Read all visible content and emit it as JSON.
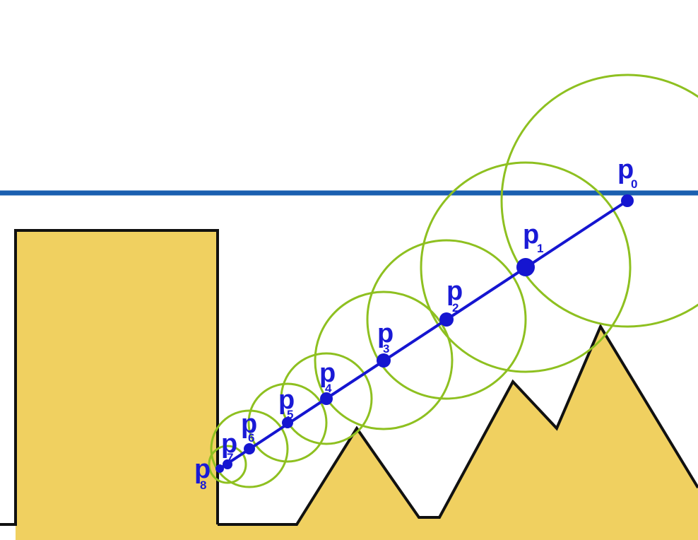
{
  "colors": {
    "background": "#ffffff",
    "terrain_fill": "#f0d060",
    "terrain_outline": "#111111",
    "horizon_line": "#1a5fb0",
    "ray": "#1515d0",
    "point": "#1515d0",
    "circle": "#8ec020",
    "label": "#1a1ad6"
  },
  "points": [
    {
      "id": "p0",
      "letter": "p",
      "index": "0"
    },
    {
      "id": "p1",
      "letter": "p",
      "index": "1"
    },
    {
      "id": "p2",
      "letter": "p",
      "index": "2"
    },
    {
      "id": "p3",
      "letter": "p",
      "index": "3"
    },
    {
      "id": "p4",
      "letter": "p",
      "index": "4"
    },
    {
      "id": "p5",
      "letter": "p",
      "index": "5"
    },
    {
      "id": "p6",
      "letter": "p",
      "index": "6"
    },
    {
      "id": "p7",
      "letter": "p",
      "index": "7"
    },
    {
      "id": "p8",
      "letter": "p",
      "index": "8"
    }
  ]
}
